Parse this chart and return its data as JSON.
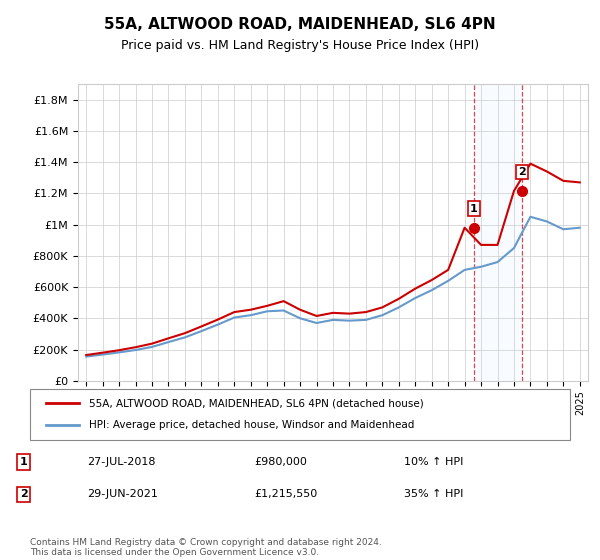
{
  "title": "55A, ALTWOOD ROAD, MAIDENHEAD, SL6 4PN",
  "subtitle": "Price paid vs. HM Land Registry's House Price Index (HPI)",
  "legend_line1": "55A, ALTWOOD ROAD, MAIDENHEAD, SL6 4PN (detached house)",
  "legend_line2": "HPI: Average price, detached house, Windsor and Maidenhead",
  "annotation1_label": "1",
  "annotation1_date": "27-JUL-2018",
  "annotation1_price": "£980,000",
  "annotation1_hpi": "10% ↑ HPI",
  "annotation1_year": 2018.57,
  "annotation1_value": 980000,
  "annotation2_label": "2",
  "annotation2_date": "29-JUN-2021",
  "annotation2_price": "£1,215,550",
  "annotation2_hpi": "35% ↑ HPI",
  "annotation2_year": 2021.5,
  "annotation2_value": 1215550,
  "footer": "Contains HM Land Registry data © Crown copyright and database right 2024.\nThis data is licensed under the Open Government Licence v3.0.",
  "ylim": [
    0,
    1900000
  ],
  "yticks": [
    0,
    200000,
    400000,
    600000,
    800000,
    1000000,
    1200000,
    1400000,
    1600000,
    1800000
  ],
  "ytick_labels": [
    "£0",
    "£200K",
    "£400K",
    "£600K",
    "£800K",
    "£1M",
    "£1.2M",
    "£1.4M",
    "£1.6M",
    "£1.8M"
  ],
  "hpi_color": "#6699cc",
  "price_color": "#cc0000",
  "shade_color": "#ddeeff",
  "annotation_color": "#cc0000",
  "background_color": "#ffffff",
  "grid_color": "#cccccc",
  "years_hpi": [
    1995,
    1996,
    1997,
    1998,
    1999,
    2000,
    2001,
    2002,
    2003,
    2004,
    2005,
    2006,
    2007,
    2008,
    2009,
    2010,
    2011,
    2012,
    2013,
    2014,
    2015,
    2016,
    2017,
    2018,
    2019,
    2020,
    2021,
    2022,
    2023,
    2024,
    2025
  ],
  "hpi_values": [
    155000,
    168000,
    182000,
    197000,
    217000,
    248000,
    278000,
    318000,
    360000,
    405000,
    420000,
    445000,
    450000,
    400000,
    370000,
    390000,
    385000,
    390000,
    420000,
    470000,
    530000,
    580000,
    640000,
    710000,
    730000,
    760000,
    850000,
    1050000,
    1020000,
    970000,
    980000
  ],
  "price_years": [
    1995,
    1996,
    1997,
    1998,
    1999,
    2000,
    2001,
    2002,
    2003,
    2004,
    2005,
    2006,
    2007,
    2008,
    2009,
    2010,
    2011,
    2012,
    2013,
    2014,
    2015,
    2016,
    2017,
    2018,
    2019,
    2020,
    2021,
    2022,
    2023,
    2024,
    2025
  ],
  "price_values": [
    165000,
    180000,
    196000,
    215000,
    238000,
    272000,
    305000,
    348000,
    392000,
    440000,
    455000,
    480000,
    510000,
    455000,
    415000,
    435000,
    430000,
    440000,
    470000,
    525000,
    590000,
    645000,
    710000,
    980000,
    870000,
    870000,
    1215550,
    1390000,
    1340000,
    1280000,
    1270000
  ]
}
